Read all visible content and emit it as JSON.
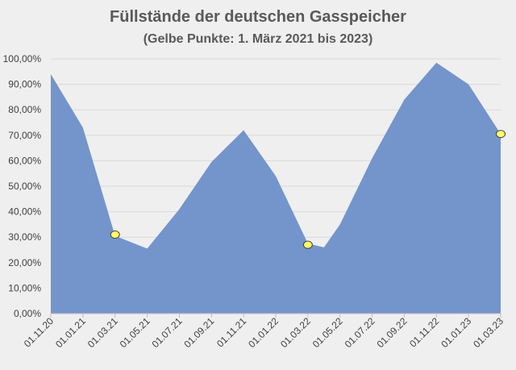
{
  "chart_data": {
    "type": "area",
    "title": "Füllstände der deutschen Gasspeicher",
    "subtitle": "(Gelbe Punkte: 1. März 2021 bis 2023)",
    "xlabel": "",
    "ylabel": "",
    "ylim": [
      0,
      100
    ],
    "y_tick_labels": [
      "0,00%",
      "10,00%",
      "20,00%",
      "30,00%",
      "40,00%",
      "50,00%",
      "60,00%",
      "70,00%",
      "80,00%",
      "90,00%",
      "100,00%"
    ],
    "categories": [
      "01.11.20",
      "01.01.21",
      "01.03.21",
      "01.05.21",
      "01.07.21",
      "01.09.21",
      "01.11.21",
      "01.01.22",
      "01.03.22",
      "01.05.22",
      "01.07.22",
      "01.09.22",
      "01.11.22",
      "01.01.23",
      "01.03.23"
    ],
    "series": [
      {
        "color": "#7494cc",
        "points": [
          {
            "x": 0,
            "y": 94.0
          },
          {
            "x": 1,
            "y": 73.0
          },
          {
            "x": 2,
            "y": 30.5
          },
          {
            "x": 3,
            "y": 25.5
          },
          {
            "x": 4,
            "y": 41.0
          },
          {
            "x": 5,
            "y": 59.5
          },
          {
            "x": 6,
            "y": 72.0
          },
          {
            "x": 7,
            "y": 54.0
          },
          {
            "x": 8,
            "y": 27.5
          },
          {
            "x": 8.5,
            "y": 26.0
          },
          {
            "x": 9,
            "y": 35.0
          },
          {
            "x": 10,
            "y": 61.0
          },
          {
            "x": 11,
            "y": 84.0
          },
          {
            "x": 12,
            "y": 98.5
          },
          {
            "x": 13,
            "y": 90.0
          },
          {
            "x": 14,
            "y": 70.5
          }
        ]
      }
    ],
    "highlight_points": {
      "color": "#ffff66",
      "points": [
        {
          "x": 2,
          "y": 31.0
        },
        {
          "x": 8,
          "y": 27.0
        },
        {
          "x": 14,
          "y": 70.5
        }
      ]
    },
    "grid": true,
    "legend": "none"
  }
}
